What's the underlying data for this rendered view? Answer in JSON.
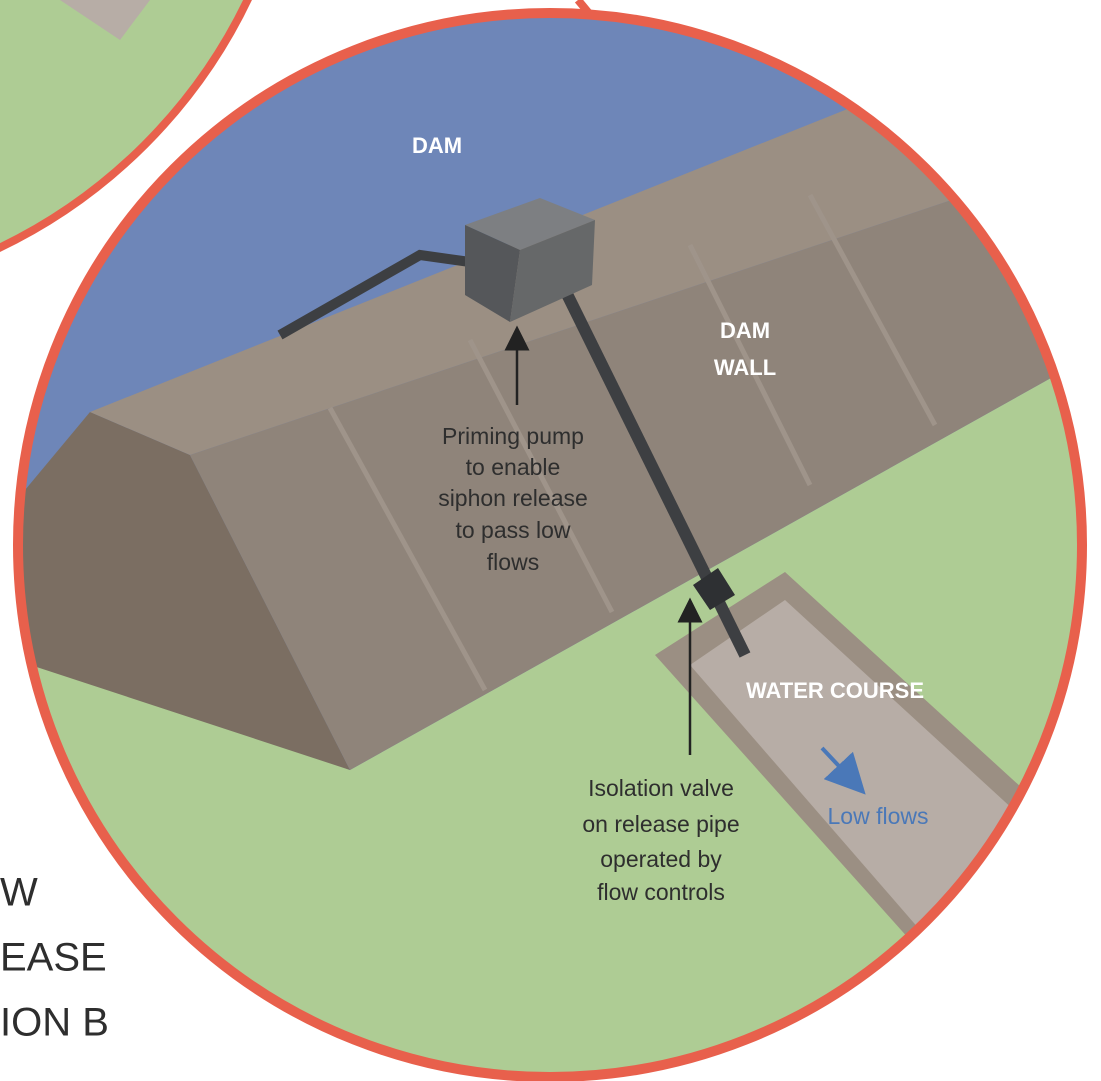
{
  "labels": {
    "dam": "DAM",
    "dam_wall": [
      "DAM",
      "WALL"
    ],
    "priming_pump": [
      "Priming pump",
      "to enable",
      "siphon release",
      "to pass low",
      "flows"
    ],
    "water_course": "WATER COURSE",
    "low_flows": "Low flows",
    "isolation_valve": [
      "Isolation valve",
      "on release pipe",
      "operated by",
      "flow controls"
    ],
    "side_title": [
      "W",
      "EASE",
      "ION B"
    ]
  }
}
